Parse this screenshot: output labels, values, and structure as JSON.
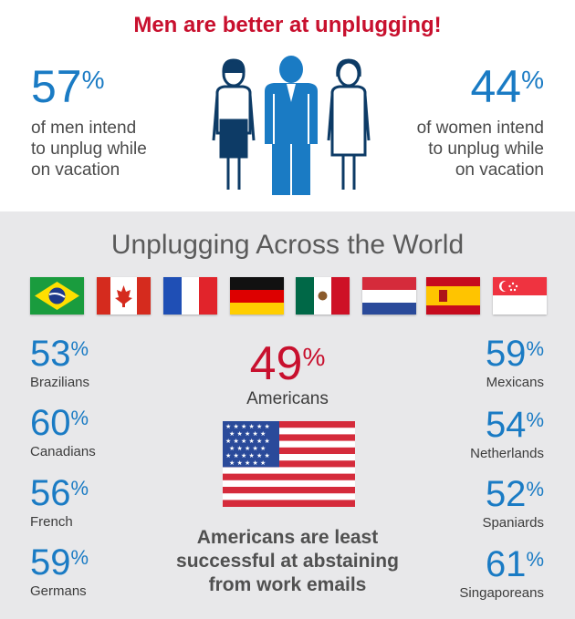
{
  "header": {
    "headline": "Men are better at unplugging!"
  },
  "men": {
    "value": "57",
    "pct": "%",
    "line1": "of men intend",
    "line2": "to unplug while",
    "line3": "on vacation"
  },
  "women": {
    "value": "44",
    "pct": "%",
    "line1": "of women intend",
    "line2": "to unplug while",
    "line3": "on vacation"
  },
  "world": {
    "title": "Unplugging Across the World"
  },
  "flags": [
    "brazil-flag",
    "canada-flag",
    "france-flag",
    "germany-flag",
    "mexico-flag",
    "netherlands-flag",
    "spain-flag",
    "singapore-flag"
  ],
  "countries_left": [
    {
      "value": "53",
      "pct": "%",
      "label": "Brazilians"
    },
    {
      "value": "60",
      "pct": "%",
      "label": "Canadians"
    },
    {
      "value": "56",
      "pct": "%",
      "label": "French"
    },
    {
      "value": "59",
      "pct": "%",
      "label": "Germans"
    }
  ],
  "countries_right": [
    {
      "value": "59",
      "pct": "%",
      "label": "Mexicans"
    },
    {
      "value": "54",
      "pct": "%",
      "label": "Netherlands"
    },
    {
      "value": "52",
      "pct": "%",
      "label": "Spaniards"
    },
    {
      "value": "61",
      "pct": "%",
      "label": "Singaporeans"
    }
  ],
  "americans": {
    "value": "49",
    "pct": "%",
    "label": "Americans"
  },
  "note": {
    "line1": "Americans are least",
    "line2": "successful at abstaining",
    "line3": "from work emails"
  },
  "colors": {
    "blue": "#1a7bc4",
    "red": "#c8102e",
    "panel": "#e8e8ea"
  }
}
